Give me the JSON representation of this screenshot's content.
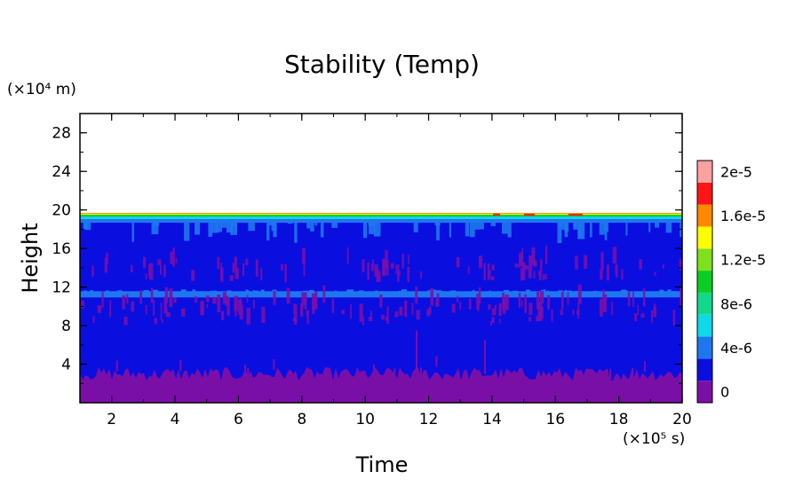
{
  "chart_data": {
    "type": "heatmap",
    "title": "Stability (Temp)",
    "xlabel": "Time",
    "ylabel": "Height",
    "x_multiplier": "(×10⁵ s)",
    "y_multiplier": "(×10⁴ m)",
    "xlim": [
      1,
      20
    ],
    "ylim": [
      0,
      30
    ],
    "x_ticks": [
      2,
      4,
      6,
      8,
      10,
      12,
      14,
      16,
      18,
      20
    ],
    "y_ticks": [
      4,
      8,
      12,
      16,
      20,
      24,
      28
    ],
    "x_tick_labels": [
      "2",
      "4",
      "6",
      "8",
      "10",
      "12",
      "14",
      "16",
      "18",
      "20"
    ],
    "y_tick_labels": [
      "4",
      "8",
      "12",
      "16",
      "20",
      "24",
      "28"
    ],
    "colorbar": {
      "levels": [
        0,
        2e-06,
        4e-06,
        6e-06,
        8e-06,
        1e-05,
        1.2e-05,
        1.4e-05,
        1.6e-05,
        1.8e-05,
        2e-05
      ],
      "colors": [
        "#7a0fa8",
        "#0a0fe0",
        "#1f77f0",
        "#10d8e8",
        "#12d98a",
        "#0ccd26",
        "#7fe01e",
        "#ffff00",
        "#ff8800",
        "#ff1515",
        "#ffa0a0"
      ],
      "tick_labels": [
        "0",
        "4e-6",
        "8e-6",
        "1.2e-5",
        "1.6e-5",
        "2e-5"
      ]
    },
    "field_summary": {
      "top_height": 19.5,
      "low_layer_top": 3,
      "band_height": 11.2,
      "purple_patch_layers": [
        [
          8,
          10.5
        ],
        [
          12.5,
          14.5
        ]
      ]
    },
    "grid": false
  }
}
